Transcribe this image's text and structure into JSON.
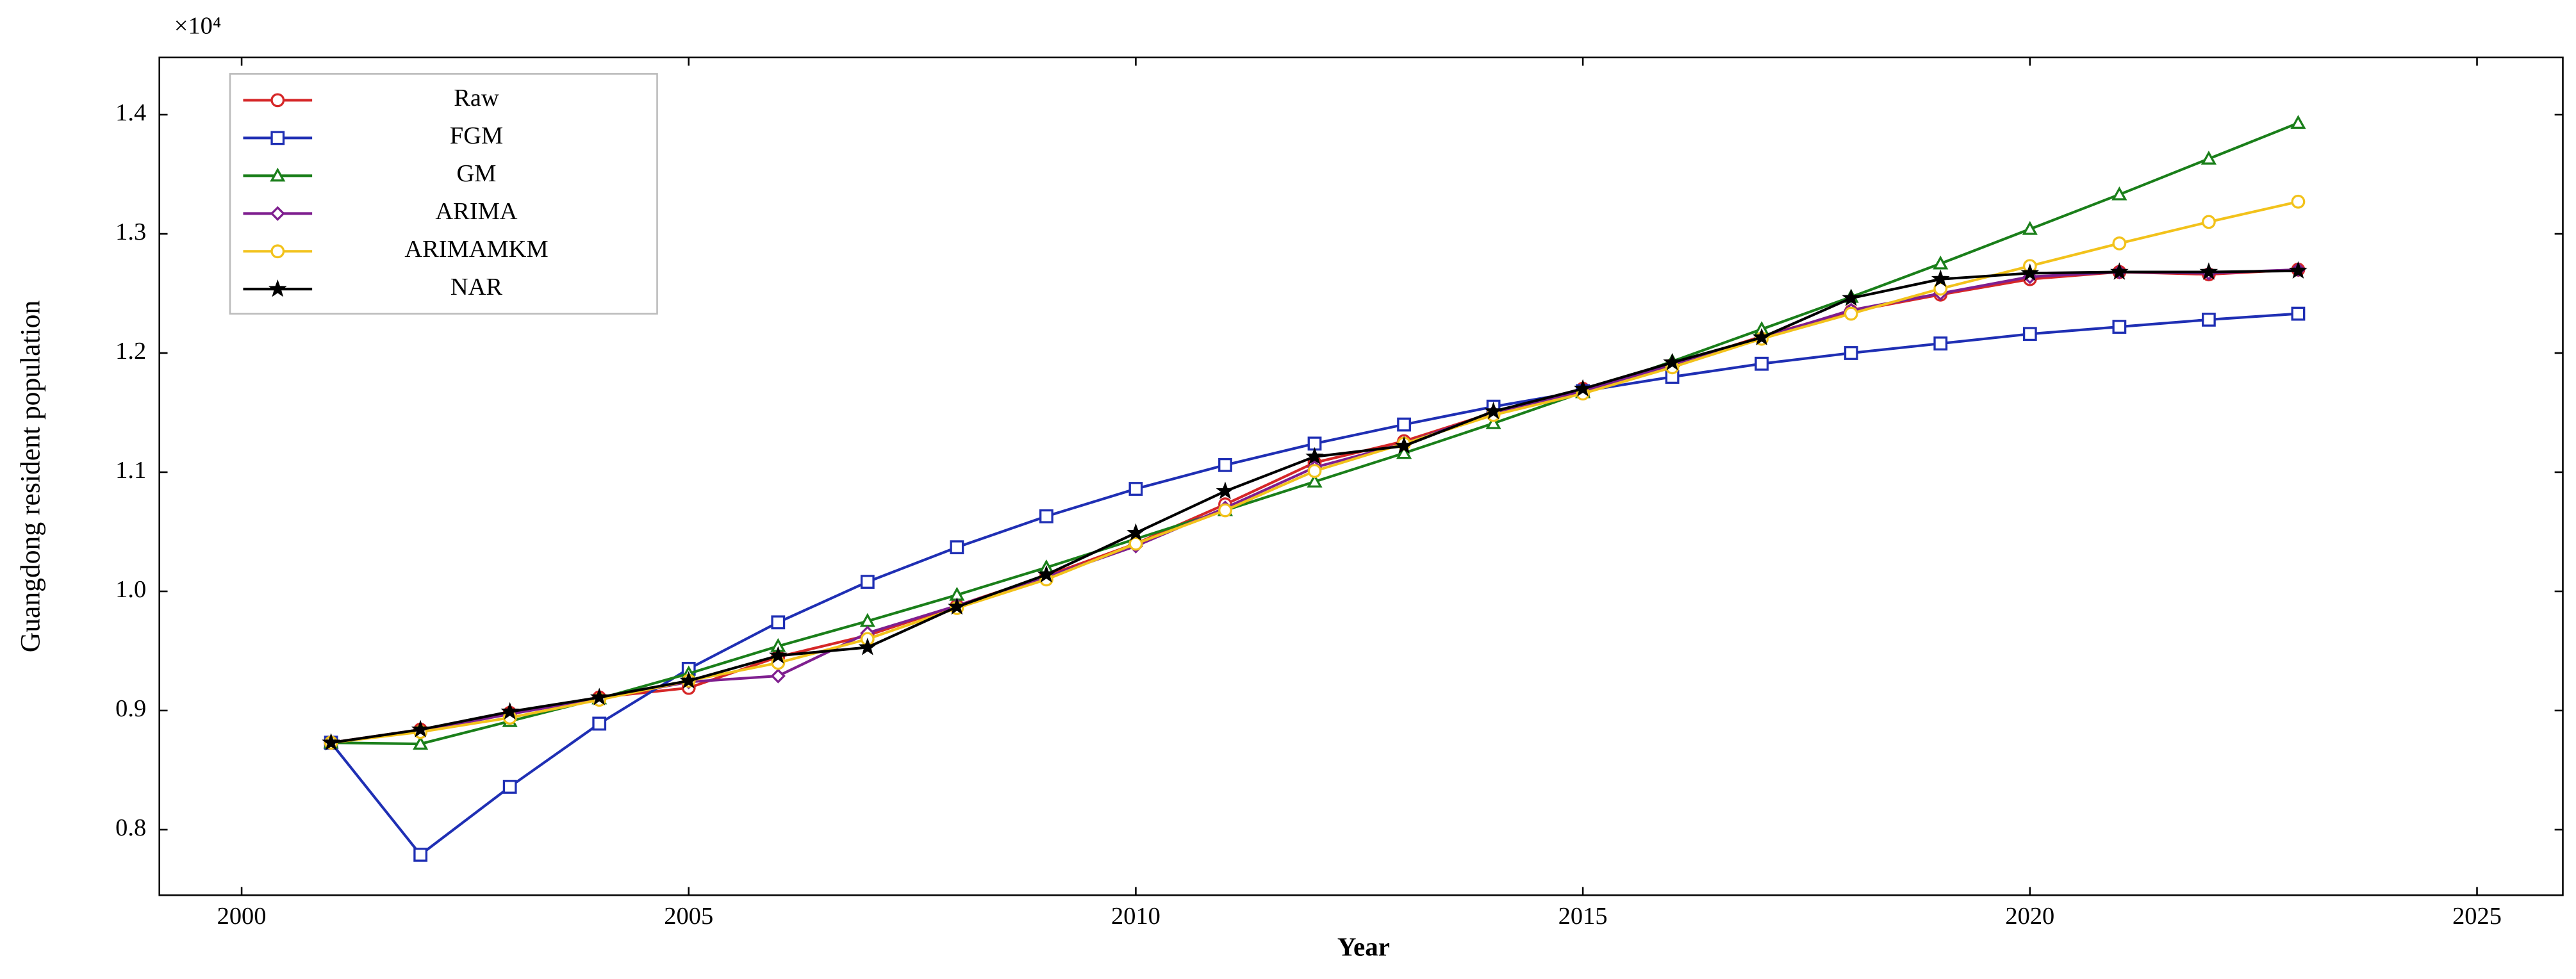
{
  "chart_data": {
    "type": "line",
    "xlabel": "Year",
    "ylabel": "Guangdong resident population",
    "y_multiplier": "×10⁴",
    "x": [
      2001,
      2002,
      2003,
      2004,
      2005,
      2006,
      2007,
      2008,
      2009,
      2010,
      2011,
      2012,
      2013,
      2014,
      2015,
      2016,
      2017,
      2018,
      2019,
      2020,
      2021,
      2022,
      2023
    ],
    "series": [
      {
        "name": "Raw",
        "color": "#d62728",
        "marker": "circle",
        "values": [
          0.873,
          0.884,
          0.898,
          0.911,
          0.919,
          0.945,
          0.963,
          0.988,
          1.013,
          1.04,
          1.073,
          1.108,
          1.126,
          1.15,
          1.17,
          1.19,
          1.214,
          1.235,
          1.249,
          1.262,
          1.268,
          1.266,
          1.27
        ]
      },
      {
        "name": "FGM",
        "color": "#1f2fb4",
        "marker": "square",
        "values": [
          0.873,
          0.779,
          0.836,
          0.889,
          0.935,
          0.974,
          1.008,
          1.037,
          1.063,
          1.086,
          1.106,
          1.124,
          1.14,
          1.155,
          1.168,
          1.18,
          1.191,
          1.2,
          1.208,
          1.216,
          1.222,
          1.228,
          1.233
        ]
      },
      {
        "name": "GM",
        "color": "#1a7f1a",
        "marker": "triangle",
        "values": [
          0.873,
          0.872,
          0.891,
          0.91,
          0.931,
          0.954,
          0.975,
          0.997,
          1.02,
          1.044,
          1.068,
          1.092,
          1.116,
          1.141,
          1.167,
          1.193,
          1.22,
          1.247,
          1.275,
          1.304,
          1.333,
          1.363,
          1.393
        ]
      },
      {
        "name": "ARIMA",
        "color": "#7f1f8f",
        "marker": "diamond",
        "values": [
          0.873,
          0.883,
          0.897,
          0.91,
          0.924,
          0.929,
          0.965,
          0.988,
          1.012,
          1.038,
          1.07,
          1.104,
          1.124,
          1.15,
          1.168,
          1.19,
          1.213,
          1.236,
          1.25,
          1.264,
          1.268,
          1.267,
          1.27
        ]
      },
      {
        "name": "ARIMAMKM",
        "color": "#f2c21b",
        "marker": "circle",
        "values": [
          0.873,
          0.882,
          0.894,
          0.909,
          0.925,
          0.94,
          0.96,
          0.986,
          1.01,
          1.04,
          1.068,
          1.101,
          1.124,
          1.148,
          1.166,
          1.188,
          1.212,
          1.233,
          1.254,
          1.273,
          1.292,
          1.31,
          1.327
        ]
      },
      {
        "name": "NAR",
        "color": "#000000",
        "marker": "star",
        "values": [
          0.873,
          0.884,
          0.899,
          0.911,
          0.925,
          0.946,
          0.953,
          0.987,
          1.014,
          1.049,
          1.084,
          1.113,
          1.122,
          1.151,
          1.17,
          1.192,
          1.213,
          1.246,
          1.262,
          1.267,
          1.268,
          1.268,
          1.269
        ]
      }
    ],
    "xlim": [
      1999.08,
      2025.96
    ],
    "ylim": [
      0.745,
      1.448
    ],
    "xticks": [
      2000,
      2005,
      2010,
      2015,
      2020,
      2025
    ],
    "yticks": [
      0.8,
      0.9,
      {
        "value": 1,
        "label": "1.0"
      },
      1.1,
      1.2,
      1.3,
      1.4
    ],
    "grid": false,
    "legend_position": "north west"
  }
}
